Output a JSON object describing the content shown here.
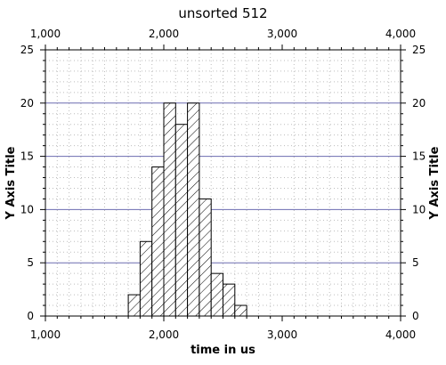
{
  "chart_data": {
    "type": "bar",
    "title": "unsorted 512",
    "xlabel": "time in us",
    "ylabel": "Y Axis Title",
    "ylabel_right": "Y Axis Title",
    "xlim": [
      1000,
      4000
    ],
    "ylim": [
      0,
      25
    ],
    "x_ticks": [
      1000,
      2000,
      3000,
      4000
    ],
    "x_tick_labels": [
      "1,000",
      "2,000",
      "3,000",
      "4,000"
    ],
    "y_ticks": [
      0,
      5,
      10,
      15,
      20,
      25
    ],
    "y_tick_labels": [
      "0",
      "5",
      "10",
      "15",
      "20",
      "25"
    ],
    "bin_width": 100,
    "bins": [
      {
        "x_start": 1700,
        "value": 2
      },
      {
        "x_start": 1800,
        "value": 7
      },
      {
        "x_start": 1900,
        "value": 14
      },
      {
        "x_start": 2000,
        "value": 20
      },
      {
        "x_start": 2100,
        "value": 18
      },
      {
        "x_start": 2200,
        "value": 20
      },
      {
        "x_start": 2300,
        "value": 11
      },
      {
        "x_start": 2400,
        "value": 4
      },
      {
        "x_start": 2500,
        "value": 3
      },
      {
        "x_start": 2600,
        "value": 1
      }
    ],
    "bar_fill": "hatched",
    "grid": true,
    "major_gridline_color": "#6b6bb0",
    "minor_gridline_color": "#bdbdbd",
    "legend": "none"
  }
}
